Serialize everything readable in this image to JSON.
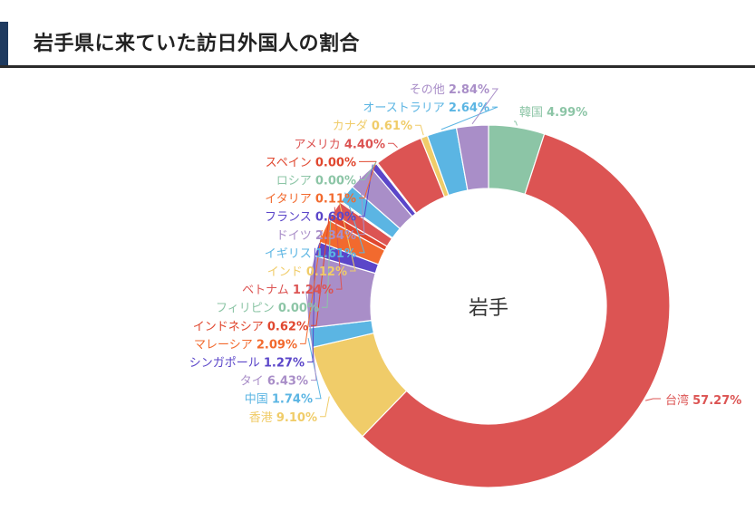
{
  "header": {
    "title": "岩手県に来ていた訪日外国人の割合"
  },
  "chart_data": {
    "type": "pie",
    "variant": "donut",
    "center_label": "岩手",
    "slices": [
      {
        "name": "韓国",
        "value": 4.99,
        "color": "#8cc5a6",
        "label_side": "right"
      },
      {
        "name": "台湾",
        "value": 57.27,
        "color": "#dc5453",
        "label_side": "right"
      },
      {
        "name": "香港",
        "value": 9.1,
        "color": "#f0cc69",
        "label_side": "left"
      },
      {
        "name": "中国",
        "value": 1.74,
        "color": "#5bb5e3",
        "label_side": "left"
      },
      {
        "name": "タイ",
        "value": 6.43,
        "color": "#a98ec8",
        "label_side": "left"
      },
      {
        "name": "シンガポール",
        "value": 1.27,
        "color": "#5b46c9",
        "label_side": "left"
      },
      {
        "name": "マレーシア",
        "value": 2.09,
        "color": "#f26a2e",
        "label_side": "left"
      },
      {
        "name": "インドネシア",
        "value": 0.62,
        "color": "#e0472f",
        "label_side": "left"
      },
      {
        "name": "フィリピン",
        "value": 0.0,
        "color": "#8cc5a6",
        "label_side": "left"
      },
      {
        "name": "ベトナム",
        "value": 1.24,
        "color": "#dc5453",
        "label_side": "left"
      },
      {
        "name": "インド",
        "value": 0.12,
        "color": "#f0cc69",
        "label_side": "left"
      },
      {
        "name": "イギリス",
        "value": 1.61,
        "color": "#5bb5e3",
        "label_side": "left"
      },
      {
        "name": "ドイツ",
        "value": 2.34,
        "color": "#a98ec8",
        "label_side": "left"
      },
      {
        "name": "フランス",
        "value": 0.6,
        "color": "#5b46c9",
        "label_side": "left"
      },
      {
        "name": "イタリア",
        "value": 0.11,
        "color": "#f26a2e",
        "label_side": "left"
      },
      {
        "name": "ロシア",
        "value": 0.0,
        "color": "#8cc5a6",
        "label_side": "left"
      },
      {
        "name": "スペイン",
        "value": 0.0,
        "color": "#e0472f",
        "label_side": "left"
      },
      {
        "name": "アメリカ",
        "value": 4.4,
        "color": "#dc5453",
        "label_side": "left"
      },
      {
        "name": "カナダ",
        "value": 0.61,
        "color": "#f0cc69",
        "label_side": "left"
      },
      {
        "name": "オーストラリア",
        "value": 2.64,
        "color": "#5bb5e3",
        "label_side": "left"
      },
      {
        "name": "その他",
        "value": 2.84,
        "color": "#a98ec8",
        "label_side": "left"
      }
    ]
  }
}
